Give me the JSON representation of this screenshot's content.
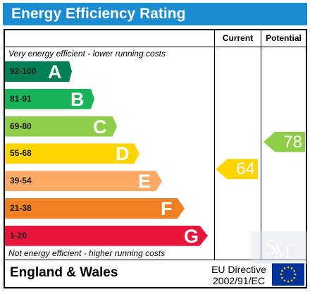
{
  "header": {
    "title": "Energy Efficiency Rating"
  },
  "columns": {
    "current": "Current",
    "potential": "Potential"
  },
  "notes": {
    "top": "Very energy efficient - lower running costs",
    "bottom": "Not energy efficient - higher running costs"
  },
  "footer": {
    "country": "England & Wales",
    "directive_line1": "EU Directive",
    "directive_line2": "2002/91/EC",
    "flag_icon": "eu-flag-icon"
  },
  "watermark": {
    "icon": "sm-monogram-icon",
    "text": "Spencer Mitchell"
  },
  "colors": {
    "header": "#1a8ccf",
    "band_a": "#008054",
    "band_b": "#19b459",
    "band_c": "#8dce46",
    "band_d": "#ffd500",
    "band_e": "#fcaa65",
    "band_f": "#ef8023",
    "band_g": "#e9153b"
  },
  "chart_data": {
    "type": "bar",
    "title": "Energy Efficiency Rating",
    "categories": [
      "A",
      "B",
      "C",
      "D",
      "E",
      "F",
      "G"
    ],
    "ranges": [
      "92-100",
      "81-91",
      "69-80",
      "55-68",
      "39-54",
      "21-38",
      "1-20"
    ],
    "series": [
      {
        "name": "Current",
        "value": 64,
        "band": "D"
      },
      {
        "name": "Potential",
        "value": 78,
        "band": "C"
      }
    ]
  }
}
